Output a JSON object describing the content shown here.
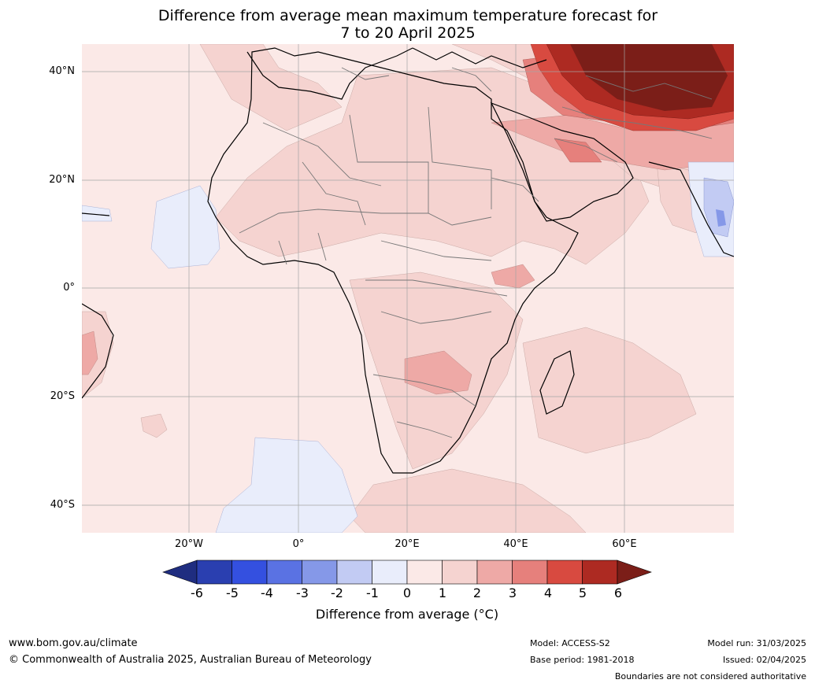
{
  "title_line1": "Difference from average mean maximum temperature forecast for",
  "title_line2": "7 to 20 April 2025",
  "lat_labels": [
    "40°N",
    "20°N",
    "0°",
    "20°S",
    "40°S"
  ],
  "lon_labels": [
    "20°W",
    "0°",
    "20°E",
    "40°E",
    "60°E"
  ],
  "colorbar": {
    "ticks": [
      "-6",
      "-5",
      "-4",
      "-3",
      "-2",
      "-1",
      "0",
      "1",
      "2",
      "3",
      "4",
      "5",
      "6"
    ],
    "colors": [
      "#1f2d80",
      "#2a3fb0",
      "#3450e0",
      "#5a72e3",
      "#8598e8",
      "#c2cbf3",
      "#e9edfb",
      "#fbe9e7",
      "#f5d3d0",
      "#eea9a6",
      "#e6807c",
      "#d84a40",
      "#ad2a22",
      "#7b1e18"
    ],
    "label": "Difference from average (°C)"
  },
  "footer": {
    "website": "www.bom.gov.au/climate",
    "copyright": "© Commonwealth of Australia 2025, Australian Bureau of Meteorology",
    "model": "Model: ACCESS-S2",
    "base_period": "Base period: 1981-2018",
    "model_run": "Model run: 31/03/2025",
    "issued": "Issued: 02/04/2025",
    "disclaimer": "Boundaries are not considered authoritative"
  }
}
